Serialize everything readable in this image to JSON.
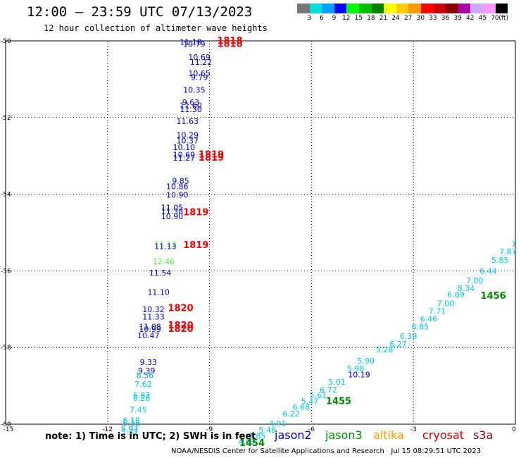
{
  "header": {
    "title": "12:00 – 23:59 UTC 07/13/2023",
    "subtitle": "12 hour collection of altimeter wave heights"
  },
  "colorbar": {
    "colors": [
      "#777777",
      "#00e0e0",
      "#00a0ff",
      "#0000ff",
      "#00ff00",
      "#00c000",
      "#008000",
      "#ffff00",
      "#ffcc00",
      "#ff9900",
      "#ff0000",
      "#cc0000",
      "#880000",
      "#aa00aa",
      "#ccaaff",
      "#ff99ff",
      "#000000"
    ],
    "labels": [
      "3",
      "6",
      "9",
      "12",
      "15",
      "18",
      "21",
      "24",
      "27",
      "30",
      "33",
      "36",
      "39",
      "42",
      "45",
      "70",
      "(ft)"
    ]
  },
  "note": "note: 1) Time is in UTC; 2) SWH is in feet",
  "legend": [
    {
      "name": "jason2",
      "color": "#0000cc"
    },
    {
      "name": "jason3",
      "color": "#008800"
    },
    {
      "name": "altika",
      "color": "#ff9900"
    },
    {
      "name": "cryosat",
      "color": "#cc0000"
    },
    {
      "name": "s3a",
      "color": "#880000"
    }
  ],
  "footer": "NOAA/NESDIS Center for Satellite Applications and Research   Jul 15 08:29:51 UTC 2023",
  "chart_data": {
    "type": "scatter",
    "xlim": [
      -15,
      0
    ],
    "ylim": [
      -60,
      -50
    ],
    "x_ticks": [
      -15,
      -12,
      -9,
      -6,
      -3,
      0
    ],
    "x_tick_labels": [
      "-15",
      "-12",
      "-9",
      "-6",
      "-3",
      "0"
    ],
    "y_ticks": [
      -50,
      -52,
      -54,
      -56,
      -58,
      -60
    ],
    "y_tick_labels": [
      "-50",
      "-52",
      "-54",
      "-56",
      "-58",
      "-60"
    ],
    "grid": true,
    "points": [
      {
        "x": -9.55,
        "y": -50.03,
        "label": "11.18",
        "color": "#0000cc"
      },
      {
        "x": -9.45,
        "y": -50.08,
        "label": "10.79",
        "color": "#0000cc"
      },
      {
        "x": -8.4,
        "y": -50.0,
        "label": "1818",
        "color": "#ee0000",
        "bold": true
      },
      {
        "x": -8.4,
        "y": -50.08,
        "label": "1818",
        "color": "#ee0000",
        "bold": true
      },
      {
        "x": -9.3,
        "y": -50.42,
        "label": "10.69",
        "color": "#0000cc"
      },
      {
        "x": -9.25,
        "y": -50.55,
        "label": "11.22",
        "color": "#0000cc"
      },
      {
        "x": -9.3,
        "y": -50.85,
        "label": "10.65",
        "color": "#0000cc"
      },
      {
        "x": -9.3,
        "y": -50.95,
        "label": "9.79",
        "color": "#0000cc"
      },
      {
        "x": -9.45,
        "y": -51.28,
        "label": "10.35",
        "color": "#0000cc"
      },
      {
        "x": -9.55,
        "y": -51.6,
        "label": "9.63",
        "color": "#0000cc"
      },
      {
        "x": -9.55,
        "y": -51.68,
        "label": "11.60",
        "color": "#0000cc"
      },
      {
        "x": -9.55,
        "y": -51.78,
        "label": "11.30",
        "color": "#0000cc"
      },
      {
        "x": -9.65,
        "y": -52.1,
        "label": "11.63",
        "color": "#0000cc"
      },
      {
        "x": -9.65,
        "y": -52.45,
        "label": "10.29",
        "color": "#0000cc"
      },
      {
        "x": -9.65,
        "y": -52.6,
        "label": "10.37",
        "color": "#0000cc"
      },
      {
        "x": -9.75,
        "y": -52.78,
        "label": "10.10",
        "color": "#0000cc"
      },
      {
        "x": -9.75,
        "y": -52.97,
        "label": "10.69",
        "color": "#0000cc"
      },
      {
        "x": -9.75,
        "y": -53.05,
        "label": "11.27",
        "color": "#0000cc"
      },
      {
        "x": -8.95,
        "y": -52.97,
        "label": "1819",
        "color": "#ee0000",
        "bold": true
      },
      {
        "x": -8.95,
        "y": -53.05,
        "label": "1819",
        "color": "#ee0000",
        "bold": true
      },
      {
        "x": -9.85,
        "y": -53.65,
        "label": "9.85",
        "color": "#0000cc"
      },
      {
        "x": -9.95,
        "y": -53.8,
        "label": "10.86",
        "color": "#0000cc"
      },
      {
        "x": -9.95,
        "y": -54.02,
        "label": "10.90",
        "color": "#0000cc"
      },
      {
        "x": -10.1,
        "y": -54.35,
        "label": "11.05",
        "color": "#0000cc"
      },
      {
        "x": -10.1,
        "y": -54.45,
        "label": "11.38",
        "color": "#0000cc"
      },
      {
        "x": -10.1,
        "y": -54.58,
        "label": "10.90",
        "color": "#0000cc"
      },
      {
        "x": -9.4,
        "y": -54.48,
        "label": "1819",
        "color": "#ee0000",
        "bold": true
      },
      {
        "x": -10.3,
        "y": -55.3,
        "label": "11.13",
        "color": "#66ee44"
      },
      {
        "x": -10.3,
        "y": -55.36,
        "label": "11.13",
        "color": "#0000cc"
      },
      {
        "x": -9.4,
        "y": -55.33,
        "label": "1819",
        "color": "#ee0000",
        "bold": true
      },
      {
        "x": -10.35,
        "y": -55.75,
        "label": "12.46",
        "color": "#66ee44"
      },
      {
        "x": -10.45,
        "y": -56.05,
        "label": "11.54",
        "color": "#0000cc"
      },
      {
        "x": -10.5,
        "y": -56.55,
        "label": "11.10",
        "color": "#0000cc"
      },
      {
        "x": -10.65,
        "y": -57.0,
        "label": "10.32",
        "color": "#0000cc"
      },
      {
        "x": -10.65,
        "y": -57.2,
        "label": "11.33",
        "color": "#0000cc"
      },
      {
        "x": -9.85,
        "y": -56.98,
        "label": "1820",
        "color": "#ee0000",
        "bold": true
      },
      {
        "x": -10.75,
        "y": -57.45,
        "label": "11.08",
        "color": "#0000cc"
      },
      {
        "x": -10.75,
        "y": -57.52,
        "label": "10.99",
        "color": "#0000cc"
      },
      {
        "x": -10.8,
        "y": -57.68,
        "label": "10.47",
        "color": "#0000cc"
      },
      {
        "x": -9.85,
        "y": -57.43,
        "label": "1820",
        "color": "#ee0000",
        "bold": true
      },
      {
        "x": -9.85,
        "y": -57.52,
        "label": "1820",
        "color": "#ee0000",
        "bold": true
      },
      {
        "x": -10.8,
        "y": -58.38,
        "label": "9.33",
        "color": "#0000cc"
      },
      {
        "x": -10.85,
        "y": -58.6,
        "label": "9.39",
        "color": "#0000cc"
      },
      {
        "x": -10.9,
        "y": -58.72,
        "label": "8.56",
        "color": "#00a0ff"
      },
      {
        "x": -10.95,
        "y": -58.95,
        "label": "7.62",
        "color": "#00c8d8"
      },
      {
        "x": -11.0,
        "y": -59.25,
        "label": "6.83",
        "color": "#00c8d8"
      },
      {
        "x": -11.0,
        "y": -59.32,
        "label": "6.20",
        "color": "#00c8d8"
      },
      {
        "x": -11.1,
        "y": -59.62,
        "label": "7.45",
        "color": "#00c8d8"
      },
      {
        "x": -11.3,
        "y": -59.9,
        "label": "6.18",
        "color": "#00c8d8"
      },
      {
        "x": -11.3,
        "y": -59.97,
        "label": "6.35",
        "color": "#00c8d8"
      },
      {
        "x": -11.35,
        "y": -60.12,
        "label": "5.93",
        "color": "#00a0ff"
      },
      {
        "x": -11.35,
        "y": -60.2,
        "label": "5.37",
        "color": "#00c8d8"
      },
      {
        "x": -7.9,
        "y": -60.45,
        "label": "4.89",
        "color": "#00c8d8"
      },
      {
        "x": -7.6,
        "y": -60.3,
        "label": "5.85",
        "color": "#00c8d8"
      },
      {
        "x": -7.3,
        "y": -60.15,
        "label": "5.46",
        "color": "#00c8d8"
      },
      {
        "x": -7.0,
        "y": -59.98,
        "label": "4.91",
        "color": "#00c8d8"
      },
      {
        "x": -6.6,
        "y": -59.72,
        "label": "6.22",
        "color": "#00c8d8"
      },
      {
        "x": -6.3,
        "y": -59.55,
        "label": "6.68",
        "color": "#00c8d8"
      },
      {
        "x": -6.05,
        "y": -59.4,
        "label": "5.47",
        "color": "#00c8d8"
      },
      {
        "x": -5.8,
        "y": -59.25,
        "label": "5.61",
        "color": "#00c8d8"
      },
      {
        "x": -5.5,
        "y": -59.1,
        "label": "6.72",
        "color": "#00c8d8"
      },
      {
        "x": -5.25,
        "y": -58.9,
        "label": "5.01",
        "color": "#00c8d8"
      },
      {
        "x": -4.6,
        "y": -58.7,
        "label": "10.19",
        "color": "#0000cc"
      },
      {
        "x": -4.7,
        "y": -58.55,
        "label": "5.98",
        "color": "#00c8d8"
      },
      {
        "x": -4.4,
        "y": -58.35,
        "label": "5.90",
        "color": "#00c8d8"
      },
      {
        "x": -3.85,
        "y": -58.05,
        "label": "5.28",
        "color": "#00c8d8"
      },
      {
        "x": -3.45,
        "y": -57.9,
        "label": "6.27",
        "color": "#00c8d8"
      },
      {
        "x": -3.15,
        "y": -57.7,
        "label": "6.39",
        "color": "#00c8d8"
      },
      {
        "x": -2.8,
        "y": -57.45,
        "label": "6.85",
        "color": "#00c8d8"
      },
      {
        "x": -2.55,
        "y": -57.25,
        "label": "6.46",
        "color": "#00c8d8"
      },
      {
        "x": -2.3,
        "y": -57.05,
        "label": "7.71",
        "color": "#00c8d8"
      },
      {
        "x": -2.05,
        "y": -56.85,
        "label": "7.00",
        "color": "#00c8d8"
      },
      {
        "x": -1.75,
        "y": -56.62,
        "label": "6.89",
        "color": "#00c8d8"
      },
      {
        "x": -1.45,
        "y": -56.45,
        "label": "8.34",
        "color": "#00c8d8"
      },
      {
        "x": -1.2,
        "y": -56.25,
        "label": "7.00",
        "color": "#00c8d8"
      },
      {
        "x": -0.8,
        "y": -56.0,
        "label": "6.44",
        "color": "#00c8d8"
      },
      {
        "x": -0.45,
        "y": -55.72,
        "label": "5.85",
        "color": "#00c8d8"
      },
      {
        "x": -0.22,
        "y": -55.5,
        "label": "7.87",
        "color": "#00c8d8"
      },
      {
        "x": -0.05,
        "y": -55.3,
        "label": "7",
        "color": "#00c8d8"
      },
      {
        "x": -0.65,
        "y": -56.65,
        "label": "1456",
        "color": "#008800",
        "bold": true
      },
      {
        "x": -5.2,
        "y": -59.4,
        "label": "1455",
        "color": "#008800",
        "bold": true
      },
      {
        "x": -7.75,
        "y": -60.5,
        "label": "1454",
        "color": "#008800",
        "bold": true
      }
    ]
  }
}
